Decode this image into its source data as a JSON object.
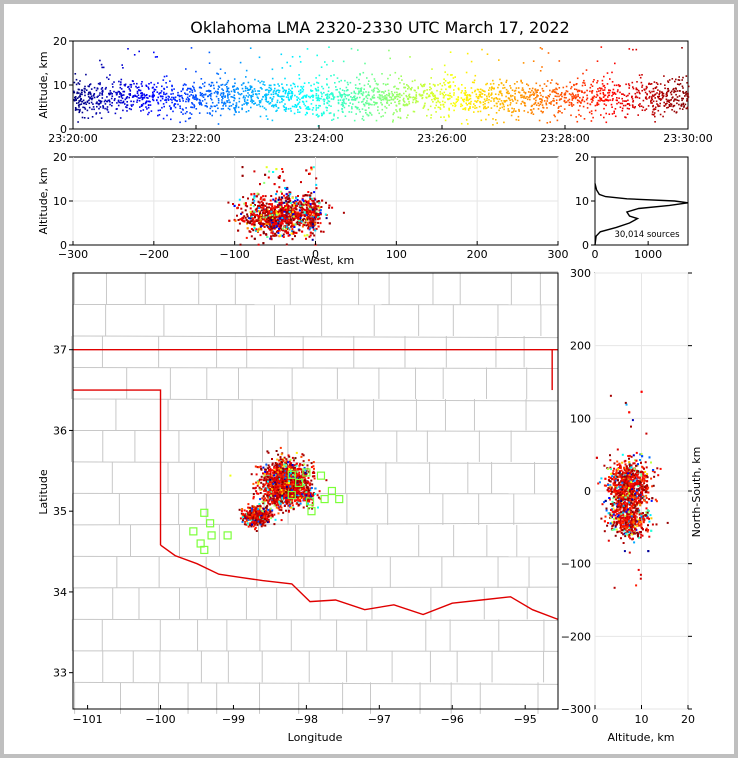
{
  "title": "Oklahoma LMA 2320-2330 UTC March 17, 2022",
  "colors": {
    "state_border": "#e00000",
    "county_lines": "#c8c8c8",
    "station_marker": "#7cff3a",
    "background": "#ffffff",
    "frame": "#bfbfbf"
  },
  "chart_data": [
    {
      "id": "altitude-vs-time",
      "type": "scatter",
      "ylabel": "Altitude, km",
      "xlabel": "",
      "x_tick_labels": [
        "23:20:00",
        "23:22:00",
        "23:24:00",
        "23:26:00",
        "23:28:00",
        "23:30:00"
      ],
      "x_range": [
        "23:20:00",
        "23:30:00"
      ],
      "ylim": [
        0,
        20
      ],
      "y_ticks": [
        0,
        10,
        20
      ],
      "colormap": "jet (by time)",
      "grid": false,
      "series": [
        {
          "values_summary": "dense band between ~3 and ~12 km across entire 10 min, sparse points up to ~19 km"
        }
      ]
    },
    {
      "id": "altitude-vs-east-west",
      "type": "scatter",
      "xlabel": "East-West, km",
      "ylabel": "Altitude, km",
      "xlim": [
        -300,
        300
      ],
      "x_ticks": [
        -300,
        -200,
        -100,
        0,
        100,
        200,
        300
      ],
      "ylim": [
        0,
        20
      ],
      "y_ticks": [
        0,
        10,
        20
      ],
      "grid": true,
      "cluster_x_range_km": [
        -100,
        10
      ],
      "cluster_alt_range_km": [
        0,
        19
      ]
    },
    {
      "id": "altitude-histogram",
      "type": "line",
      "annotation": "30,014 sources",
      "xlim": [
        0,
        1750
      ],
      "x_ticks": [
        0,
        1000
      ],
      "ylim": [
        0,
        20
      ],
      "y_ticks": [
        0,
        10,
        20
      ],
      "series": [
        {
          "x": [
            0,
            20,
            100,
            400,
            650,
            800,
            650,
            600,
            820,
            1400,
            1750,
            1500,
            600,
            200,
            80,
            30,
            0
          ],
          "y": [
            0,
            2,
            3,
            4,
            5,
            6,
            6.6,
            7.5,
            8.3,
            9.0,
            9.6,
            10.0,
            10.5,
            11.0,
            11.5,
            12.5,
            14
          ]
        }
      ]
    },
    {
      "id": "plan-view-map",
      "type": "scatter",
      "xlabel": "Longitude",
      "ylabel": "Latitude",
      "xlim": [
        -101.2,
        -94.55
      ],
      "ylim": [
        32.55,
        37.95
      ],
      "x_ticks": [
        -101,
        -100,
        -99,
        -98,
        -97,
        -96,
        -95
      ],
      "y_ticks": [
        33,
        34,
        35,
        36,
        37
      ],
      "lightning_clusters": [
        {
          "lon": -98.3,
          "lat": 35.35,
          "spread": [
            0.35,
            0.3
          ]
        },
        {
          "lon": -98.7,
          "lat": 34.95,
          "spread": [
            0.2,
            0.12
          ]
        },
        {
          "lon": -98.0,
          "lat": 35.2,
          "spread": [
            0.08,
            0.06
          ]
        }
      ],
      "stations": [
        [
          -99.4,
          34.98
        ],
        [
          -99.32,
          34.85
        ],
        [
          -99.55,
          34.75
        ],
        [
          -99.3,
          34.7
        ],
        [
          -99.45,
          34.6
        ],
        [
          -99.4,
          34.52
        ],
        [
          -99.08,
          34.7
        ],
        [
          -98.2,
          35.45
        ],
        [
          -98.0,
          35.48
        ],
        [
          -97.8,
          35.44
        ],
        [
          -97.65,
          35.25
        ],
        [
          -97.55,
          35.15
        ],
        [
          -97.75,
          35.15
        ],
        [
          -97.95,
          35.12
        ],
        [
          -97.93,
          35.0
        ],
        [
          -98.1,
          35.35
        ],
        [
          -98.2,
          35.2
        ]
      ]
    },
    {
      "id": "north-south-vs-altitude",
      "type": "scatter",
      "xlabel": "Altitude, km",
      "ylabel": "North-South, km",
      "xlim": [
        0,
        20
      ],
      "x_ticks": [
        0,
        10,
        20
      ],
      "ylim": [
        -300,
        300
      ],
      "y_ticks": [
        -300,
        -200,
        -100,
        0,
        100,
        200,
        300
      ],
      "grid": true
    }
  ]
}
